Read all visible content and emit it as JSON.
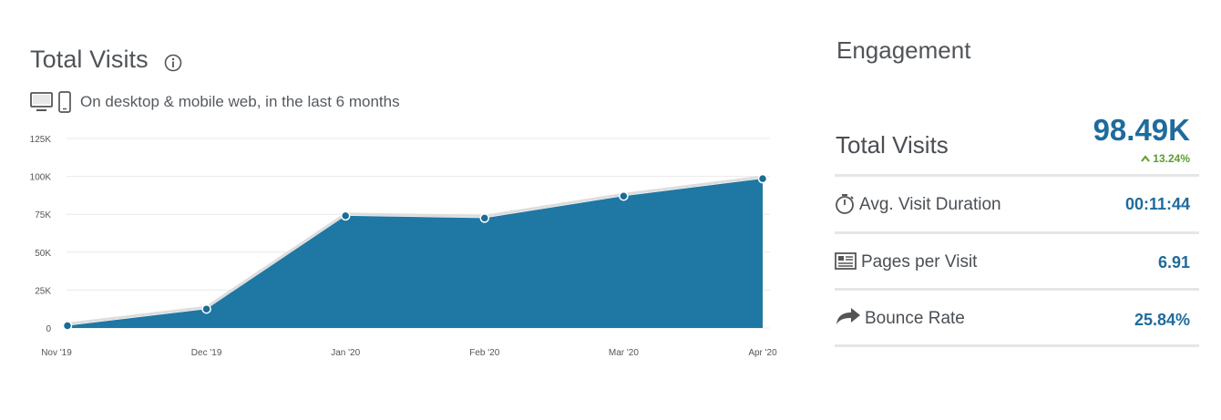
{
  "total_visits_card": {
    "title": "Total Visits",
    "info_icon": "info-icon",
    "subtitle": "On desktop & mobile web, in the last 6 months",
    "device_icons": [
      "desktop-icon",
      "mobile-icon"
    ]
  },
  "chart_data": {
    "type": "area",
    "x": [
      "Nov '19",
      "Dec '19",
      "Jan '20",
      "Feb '20",
      "Mar '20",
      "Apr '20"
    ],
    "values": [
      1500,
      12500,
      74000,
      72500,
      87000,
      98490
    ],
    "ylim": [
      0,
      125000
    ],
    "yticks": [
      0,
      25000,
      50000,
      75000,
      100000,
      125000
    ],
    "ytick_labels": [
      "0",
      "25K",
      "50K",
      "75K",
      "100K",
      "125K"
    ],
    "grid": true,
    "colors": {
      "fill": "#1f77a4",
      "line": "#dddddd",
      "marker": "#1b6c96"
    }
  },
  "engagement": {
    "title": "Engagement",
    "total_visits": {
      "label": "Total Visits",
      "value": "98.49K",
      "change": "13.24%",
      "change_icon": "arrow-up-icon",
      "change_color": "#5a9e2f"
    },
    "metrics": [
      {
        "icon": "stopwatch-icon",
        "label": "Avg. Visit Duration",
        "value": "00:11:44"
      },
      {
        "icon": "pages-icon",
        "label": "Pages per Visit",
        "value": "6.91"
      },
      {
        "icon": "bounce-arrow-icon",
        "label": "Bounce Rate",
        "value": "25.84%"
      }
    ],
    "value_color": "#1f6b9c"
  }
}
